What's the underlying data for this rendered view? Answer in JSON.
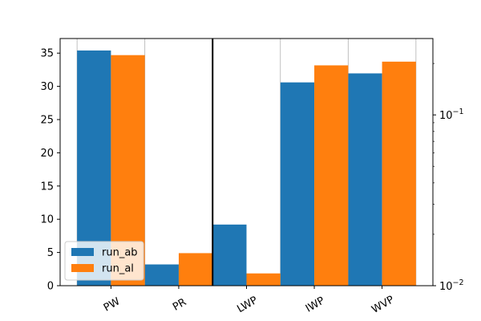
{
  "chart_data": {
    "type": "bar",
    "categories": [
      "PW",
      "PR",
      "LWP",
      "IWP",
      "WVP"
    ],
    "series": [
      {
        "name": "run_ab",
        "color": "#1f77b4",
        "values": [
          35.4,
          3.2,
          0.0228,
          0.155,
          0.175
        ]
      },
      {
        "name": "run_al",
        "color": "#ff7f0e",
        "values": [
          34.7,
          4.9,
          0.0118,
          0.195,
          0.205
        ]
      }
    ],
    "left_axis": {
      "scale": "linear",
      "ylim": [
        0,
        37.2
      ],
      "ticks": [
        0,
        5,
        10,
        15,
        20,
        25,
        30,
        35
      ],
      "tick_labels": [
        "0",
        "5",
        "10",
        "15",
        "20",
        "25",
        "30",
        "35"
      ],
      "applies_to": [
        "PW",
        "PR"
      ]
    },
    "right_axis": {
      "scale": "log",
      "ylim": [
        0.01,
        0.28
      ],
      "major_ticks": [
        0.01,
        0.1
      ],
      "tick_labels": [
        "10",
        "10"
      ],
      "tick_exponents": [
        "−2",
        "−1"
      ],
      "applies_to": [
        "LWP",
        "IWP",
        "WVP"
      ]
    },
    "divider_between": [
      "PR",
      "LWP"
    ],
    "x_tick_rotation": "30",
    "grid": "vertical",
    "legend": {
      "position": "bottom-left",
      "entries": [
        "run_ab",
        "run_al"
      ]
    },
    "title": "",
    "xlabel": "",
    "ylabel": ""
  }
}
